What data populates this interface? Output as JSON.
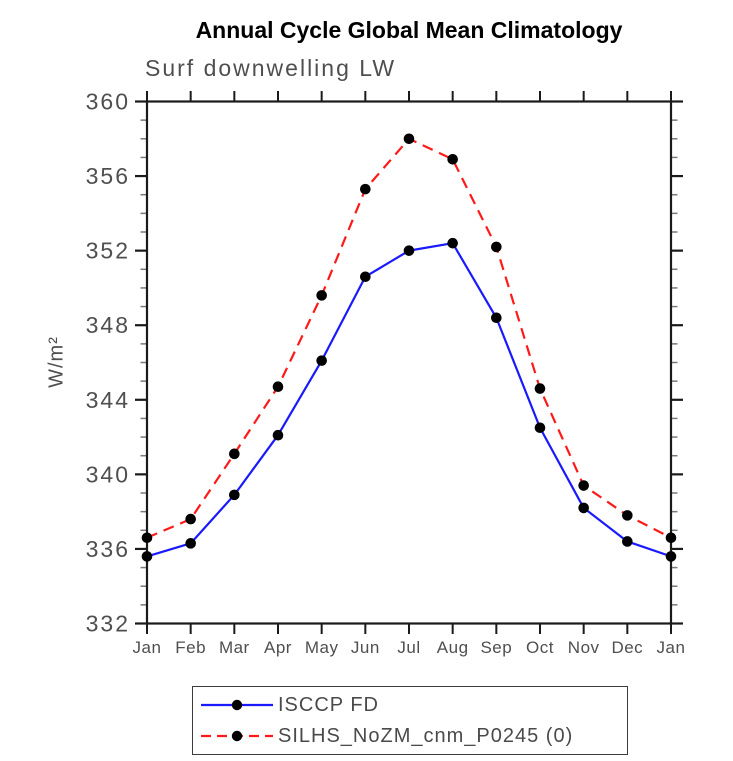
{
  "chart_data": {
    "type": "line",
    "title": "Annual Cycle Global Mean Climatology",
    "subtitle": "Surf downwelling LW",
    "xlabel": "",
    "ylabel": "W/m²",
    "ylim": [
      332,
      360
    ],
    "ytick_interval": 4,
    "yticks": [
      332,
      336,
      340,
      344,
      348,
      352,
      356,
      360
    ],
    "minor_tick_interval": 1,
    "grid": false,
    "legend_position": "bottom",
    "categories": [
      "Jan",
      "Feb",
      "Mar",
      "Apr",
      "May",
      "Jun",
      "Jul",
      "Aug",
      "Sep",
      "Oct",
      "Nov",
      "Dec",
      "Jan"
    ],
    "series": [
      {
        "name": "ISCCP FD",
        "color": "#1a1aff",
        "line_style": "solid",
        "marker": "circle",
        "marker_color": "#000000",
        "values": [
          335.6,
          336.3,
          338.9,
          342.1,
          346.1,
          350.6,
          352.0,
          352.4,
          348.4,
          342.5,
          338.2,
          336.4,
          335.6
        ]
      },
      {
        "name": "SILHS_NoZM_cnm_P0245 (0)",
        "color": "#ff1a1a",
        "line_style": "dashed",
        "marker": "circle",
        "marker_color": "#000000",
        "values": [
          336.6,
          337.6,
          341.1,
          344.7,
          349.6,
          355.3,
          358.0,
          356.9,
          352.2,
          344.6,
          339.4,
          337.8,
          336.6
        ]
      }
    ],
    "axis_color": "#1a1a1a",
    "tick_label_color": "#4f4f4f"
  }
}
